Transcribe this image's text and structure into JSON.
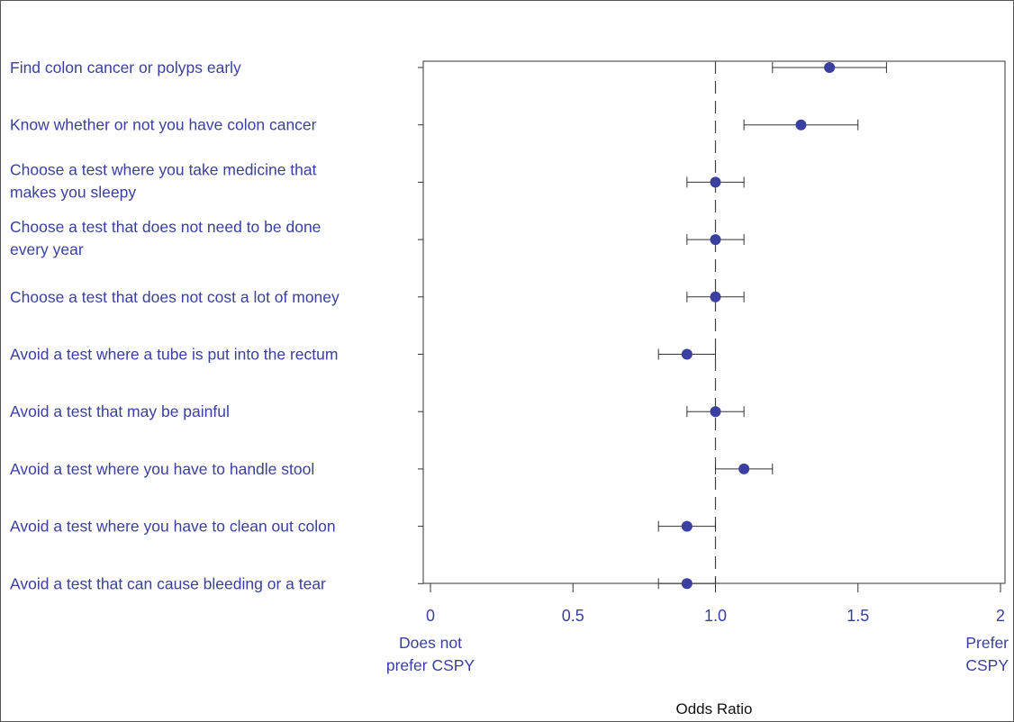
{
  "chart_data": {
    "type": "scatter",
    "subtype": "forest-plot",
    "categories": [
      [
        "Find colon cancer or polyps early"
      ],
      [
        "Know whether or not you have colon cancer"
      ],
      [
        "Choose a test where you take medicine that",
        "makes you sleepy"
      ],
      [
        "Choose a test that does not need to be done",
        "every year"
      ],
      [
        "Choose a test that does not cost a lot of money"
      ],
      [
        "Avoid a test where a tube is put into the rectum"
      ],
      [
        "Avoid a test that may be painful"
      ],
      [
        "Avoid a test where you have to handle stool"
      ],
      [
        "Avoid a test where you have to clean out colon"
      ],
      [
        "Avoid a test that can cause bleeding or a tear"
      ]
    ],
    "estimates": [
      1.4,
      1.3,
      1.0,
      1.0,
      1.0,
      0.9,
      1.0,
      1.1,
      0.9,
      0.9
    ],
    "ci_lower": [
      1.2,
      1.1,
      0.9,
      0.9,
      0.9,
      0.8,
      0.9,
      1.0,
      0.8,
      0.8
    ],
    "ci_upper": [
      1.6,
      1.5,
      1.1,
      1.1,
      1.1,
      1.0,
      1.1,
      1.2,
      1.0,
      1.0
    ],
    "xlim": [
      0,
      2
    ],
    "xticks": [
      0,
      0.5,
      1,
      1.5,
      2
    ],
    "xtick_labels": [
      "0",
      "0.5",
      "1.0",
      "1.5",
      "2"
    ],
    "reference_line": 1.0,
    "xlabel": "Odds Ratio",
    "left_end_label": [
      "Does not",
      "prefer CSPY"
    ],
    "right_end_label": [
      "Prefer",
      "CSPY"
    ],
    "grid": false,
    "colors": {
      "marker": "#3a3fa0",
      "text": "#3a3fa0",
      "axis": "#333333",
      "frame": "#555555"
    }
  }
}
